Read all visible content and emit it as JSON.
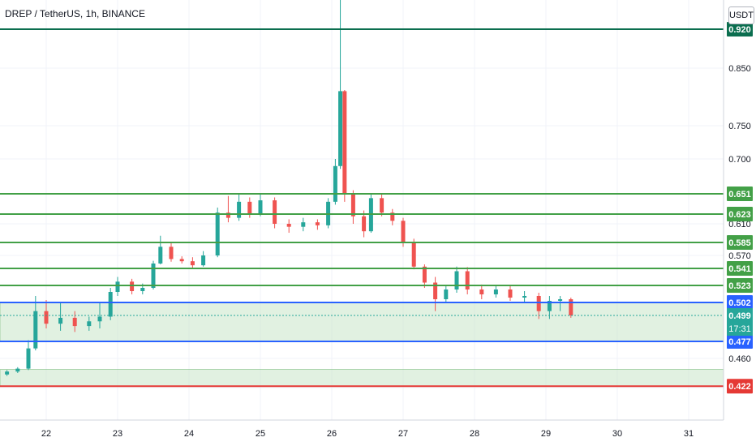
{
  "header": {
    "title": "DREP / TetherUS, 1h, BINANCE",
    "currency": "USDT"
  },
  "countdown": "17:31",
  "colors": {
    "up": "#26a69a",
    "down": "#ef5350",
    "support_blue": "#2962ff",
    "level_green": "#43a047",
    "level_dark_green": "#0b6e4f",
    "level_red": "#e53935",
    "zone_fill": "#c8e6c9",
    "grid": "#f0f3fa"
  },
  "chart_data": {
    "type": "candlestick",
    "title": "DREP / TetherUS, 1h, BINANCE",
    "y_axis_ticks": [
      "0.850",
      "0.750",
      "0.700",
      "0.610",
      "0.570",
      "0.460",
      "0.420"
    ],
    "x_axis_ticks": [
      "22",
      "23",
      "24",
      "25",
      "26",
      "27",
      "28",
      "29",
      "30",
      "31"
    ],
    "levels": [
      {
        "value": 0.92,
        "label": "0.920",
        "color": "#0b6e4f"
      },
      {
        "value": 0.651,
        "label": "0.651",
        "color": "#43a047"
      },
      {
        "value": 0.623,
        "label": "0.623",
        "color": "#43a047"
      },
      {
        "value": 0.585,
        "label": "0.585",
        "color": "#43a047"
      },
      {
        "value": 0.541,
        "label": "0.541",
        "color": "#43a047"
      },
      {
        "value": 0.523,
        "label": "0.523",
        "color": "#43a047"
      },
      {
        "value": 0.502,
        "label": "0.502",
        "color": "#2962ff"
      },
      {
        "value": 0.477,
        "label": "0.477",
        "color": "#2962ff"
      },
      {
        "value": 0.422,
        "label": "0.422",
        "color": "#e53935"
      }
    ],
    "current_price": {
      "value": 0.499,
      "label": "0.499"
    },
    "zones": [
      {
        "from": 0.477,
        "to": 0.502
      },
      {
        "from": 0.422,
        "to": 0.445
      }
    ],
    "candles": [
      {
        "day": 21.3,
        "open": 0.436,
        "high": 0.44,
        "low": 0.432,
        "close": 0.438
      },
      {
        "day": 21.45,
        "open": 0.438,
        "high": 0.444,
        "low": 0.436,
        "close": 0.442
      },
      {
        "day": 21.6,
        "open": 0.442,
        "high": 0.448,
        "low": 0.44,
        "close": 0.446
      },
      {
        "day": 21.75,
        "open": 0.446,
        "high": 0.478,
        "low": 0.444,
        "close": 0.47
      },
      {
        "day": 21.85,
        "open": 0.47,
        "high": 0.51,
        "low": 0.468,
        "close": 0.5
      },
      {
        "day": 22.0,
        "open": 0.5,
        "high": 0.505,
        "low": 0.488,
        "close": 0.492
      },
      {
        "day": 22.2,
        "open": 0.492,
        "high": 0.503,
        "low": 0.486,
        "close": 0.497
      },
      {
        "day": 22.4,
        "open": 0.497,
        "high": 0.5,
        "low": 0.485,
        "close": 0.49
      },
      {
        "day": 22.6,
        "open": 0.49,
        "high": 0.498,
        "low": 0.486,
        "close": 0.494
      },
      {
        "day": 22.75,
        "open": 0.494,
        "high": 0.502,
        "low": 0.488,
        "close": 0.498
      },
      {
        "day": 22.9,
        "open": 0.498,
        "high": 0.52,
        "low": 0.495,
        "close": 0.515
      },
      {
        "day": 23.0,
        "open": 0.515,
        "high": 0.532,
        "low": 0.51,
        "close": 0.527
      },
      {
        "day": 23.2,
        "open": 0.527,
        "high": 0.53,
        "low": 0.512,
        "close": 0.516
      },
      {
        "day": 23.35,
        "open": 0.516,
        "high": 0.525,
        "low": 0.512,
        "close": 0.52
      },
      {
        "day": 23.5,
        "open": 0.52,
        "high": 0.558,
        "low": 0.518,
        "close": 0.552
      },
      {
        "day": 23.6,
        "open": 0.552,
        "high": 0.594,
        "low": 0.55,
        "close": 0.58
      },
      {
        "day": 23.75,
        "open": 0.58,
        "high": 0.586,
        "low": 0.556,
        "close": 0.562
      },
      {
        "day": 23.9,
        "open": 0.562,
        "high": 0.568,
        "low": 0.552,
        "close": 0.557
      },
      {
        "day": 24.05,
        "open": 0.557,
        "high": 0.566,
        "low": 0.542,
        "close": 0.548
      },
      {
        "day": 24.2,
        "open": 0.548,
        "high": 0.575,
        "low": 0.545,
        "close": 0.57
      },
      {
        "day": 24.4,
        "open": 0.57,
        "high": 0.632,
        "low": 0.566,
        "close": 0.625
      },
      {
        "day": 24.55,
        "open": 0.625,
        "high": 0.648,
        "low": 0.612,
        "close": 0.618
      },
      {
        "day": 24.7,
        "open": 0.618,
        "high": 0.652,
        "low": 0.614,
        "close": 0.64
      },
      {
        "day": 24.85,
        "open": 0.64,
        "high": 0.646,
        "low": 0.618,
        "close": 0.624
      },
      {
        "day": 25.0,
        "open": 0.624,
        "high": 0.65,
        "low": 0.62,
        "close": 0.642
      },
      {
        "day": 25.2,
        "open": 0.642,
        "high": 0.646,
        "low": 0.604,
        "close": 0.61
      },
      {
        "day": 25.4,
        "open": 0.61,
        "high": 0.616,
        "low": 0.598,
        "close": 0.606
      },
      {
        "day": 25.6,
        "open": 0.606,
        "high": 0.618,
        "low": 0.6,
        "close": 0.612
      },
      {
        "day": 25.8,
        "open": 0.612,
        "high": 0.616,
        "low": 0.602,
        "close": 0.608
      },
      {
        "day": 25.95,
        "open": 0.608,
        "high": 0.645,
        "low": 0.604,
        "close": 0.64
      },
      {
        "day": 26.05,
        "open": 0.64,
        "high": 0.7,
        "low": 0.636,
        "close": 0.69
      },
      {
        "day": 26.12,
        "open": 0.69,
        "high": 0.96,
        "low": 0.686,
        "close": 0.81
      },
      {
        "day": 26.18,
        "open": 0.81,
        "high": 0.812,
        "low": 0.64,
        "close": 0.65
      },
      {
        "day": 26.3,
        "open": 0.65,
        "high": 0.656,
        "low": 0.61,
        "close": 0.62
      },
      {
        "day": 26.45,
        "open": 0.62,
        "high": 0.628,
        "low": 0.592,
        "close": 0.6
      },
      {
        "day": 26.55,
        "open": 0.6,
        "high": 0.65,
        "low": 0.598,
        "close": 0.645
      },
      {
        "day": 26.7,
        "open": 0.645,
        "high": 0.65,
        "low": 0.62,
        "close": 0.625
      },
      {
        "day": 26.85,
        "open": 0.625,
        "high": 0.63,
        "low": 0.608,
        "close": 0.614
      },
      {
        "day": 27.0,
        "open": 0.614,
        "high": 0.618,
        "low": 0.58,
        "close": 0.585
      },
      {
        "day": 27.15,
        "open": 0.585,
        "high": 0.59,
        "low": 0.54,
        "close": 0.545
      },
      {
        "day": 27.3,
        "open": 0.545,
        "high": 0.55,
        "low": 0.52,
        "close": 0.526
      },
      {
        "day": 27.45,
        "open": 0.526,
        "high": 0.532,
        "low": 0.5,
        "close": 0.506
      },
      {
        "day": 27.6,
        "open": 0.506,
        "high": 0.522,
        "low": 0.502,
        "close": 0.518
      },
      {
        "day": 27.75,
        "open": 0.518,
        "high": 0.545,
        "low": 0.514,
        "close": 0.538
      },
      {
        "day": 27.9,
        "open": 0.538,
        "high": 0.544,
        "low": 0.512,
        "close": 0.518
      },
      {
        "day": 28.1,
        "open": 0.518,
        "high": 0.524,
        "low": 0.506,
        "close": 0.512
      },
      {
        "day": 28.3,
        "open": 0.512,
        "high": 0.522,
        "low": 0.508,
        "close": 0.518
      },
      {
        "day": 28.5,
        "open": 0.518,
        "high": 0.522,
        "low": 0.504,
        "close": 0.508
      },
      {
        "day": 28.7,
        "open": 0.508,
        "high": 0.516,
        "low": 0.502,
        "close": 0.51
      },
      {
        "day": 28.9,
        "open": 0.51,
        "high": 0.514,
        "low": 0.496,
        "close": 0.5
      },
      {
        "day": 29.05,
        "open": 0.5,
        "high": 0.51,
        "low": 0.496,
        "close": 0.504
      },
      {
        "day": 29.2,
        "open": 0.504,
        "high": 0.51,
        "low": 0.5,
        "close": 0.506
      },
      {
        "day": 29.35,
        "open": 0.506,
        "high": 0.508,
        "low": 0.497,
        "close": 0.499
      }
    ]
  }
}
